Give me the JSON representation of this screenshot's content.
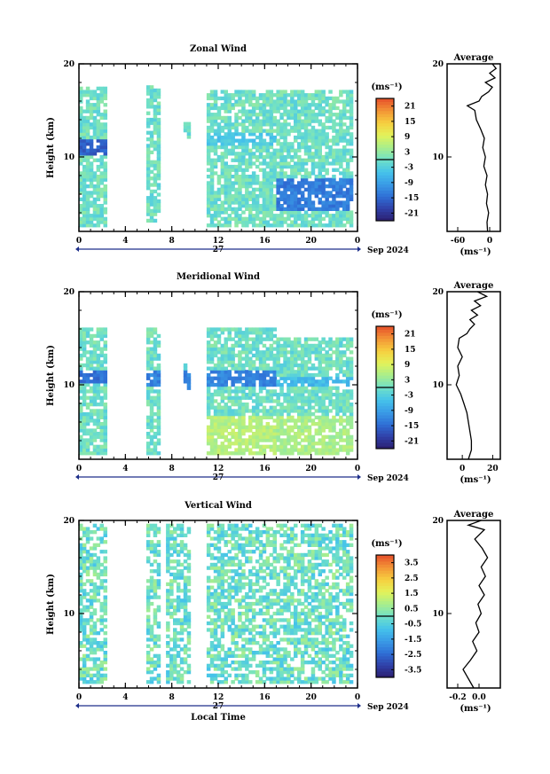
{
  "chart_data": [
    {
      "type": "heatmap",
      "id": "zonal",
      "title": "Zonal Wind",
      "ylabel": "Height (km)",
      "xlabel": "",
      "x_ticks": [
        "0",
        "4",
        "8",
        "12",
        "16",
        "20",
        "0"
      ],
      "y_ticks": [
        "20",
        "10"
      ],
      "ylim": [
        2,
        20
      ],
      "xlim": [
        0,
        24
      ],
      "date_center": "27",
      "date_label": "Sep 2024",
      "colorbar": {
        "unit": "(ms⁻¹)",
        "ticks": [
          "21",
          "15",
          "9",
          "3",
          "-3",
          "-9",
          "-15",
          "-21"
        ],
        "range": [
          -24,
          24
        ]
      },
      "coverage": [
        [
          0.0,
          2.3,
          2.5,
          17.5
        ],
        [
          5.8,
          6.8,
          3.0,
          17.5
        ],
        [
          9.0,
          9.6,
          12.0,
          13.5
        ],
        [
          11.0,
          17.0,
          2.5,
          17.0
        ],
        [
          17.0,
          23.5,
          2.5,
          17.0
        ]
      ],
      "jet": [
        [
          0.0,
          2.3,
          10.0,
          11.6,
          -16
        ],
        [
          11.0,
          17.0,
          11.0,
          12.5,
          -4
        ],
        [
          17.0,
          23.5,
          12.0,
          13.5,
          0
        ],
        [
          17.0,
          23.5,
          4.0,
          7.5,
          -13
        ]
      ],
      "average": {
        "title": "Average",
        "x_ticks": [
          "-60",
          "0"
        ],
        "xlim": [
          -80,
          20
        ],
        "xlabel": "(ms⁻¹)",
        "y_ticks": [
          "20",
          "10"
        ],
        "profile": [
          [
            2.0,
            -4
          ],
          [
            3.0,
            -5
          ],
          [
            4.0,
            -2
          ],
          [
            5.0,
            -6
          ],
          [
            6.0,
            -4
          ],
          [
            7.0,
            -8
          ],
          [
            8.0,
            -5
          ],
          [
            9.0,
            -11
          ],
          [
            10.0,
            -8
          ],
          [
            11.0,
            -13
          ],
          [
            12.0,
            -10
          ],
          [
            13.0,
            -17
          ],
          [
            14.0,
            -25
          ],
          [
            15.0,
            -28
          ],
          [
            15.5,
            -42
          ],
          [
            16.0,
            -20
          ],
          [
            16.5,
            -15
          ],
          [
            17.0,
            -2
          ],
          [
            17.5,
            5
          ],
          [
            18.0,
            -8
          ],
          [
            18.5,
            10
          ],
          [
            19.0,
            0
          ],
          [
            19.5,
            12
          ],
          [
            20.0,
            5
          ]
        ]
      }
    },
    {
      "type": "heatmap",
      "id": "meridional",
      "title": "Meridional Wind",
      "ylabel": "Height (km)",
      "xlabel": "",
      "x_ticks": [
        "0",
        "4",
        "8",
        "12",
        "16",
        "20",
        "0"
      ],
      "y_ticks": [
        "20",
        "10"
      ],
      "ylim": [
        2,
        20
      ],
      "xlim": [
        0,
        24
      ],
      "date_center": "27",
      "date_label": "Sep 2024",
      "colorbar": {
        "unit": "(ms⁻¹)",
        "ticks": [
          "21",
          "15",
          "9",
          "3",
          "-3",
          "-9",
          "-15",
          "-21"
        ],
        "range": [
          -24,
          24
        ]
      },
      "coverage": [
        [
          0.0,
          2.3,
          2.5,
          16.0
        ],
        [
          5.8,
          6.8,
          2.5,
          16.0
        ],
        [
          9.0,
          9.6,
          9.5,
          12.0
        ],
        [
          11.0,
          17.0,
          2.5,
          16.0
        ],
        [
          17.0,
          23.5,
          2.5,
          15.0
        ]
      ],
      "jet": [
        [
          0.0,
          2.3,
          10.0,
          11.5,
          -14
        ],
        [
          5.8,
          6.8,
          9.5,
          11.5,
          -12
        ],
        [
          9.0,
          9.6,
          9.5,
          11.5,
          -12
        ],
        [
          11.0,
          17.0,
          9.5,
          11.5,
          -12
        ],
        [
          17.0,
          23.5,
          9.5,
          10.8,
          -6
        ],
        [
          11.0,
          17.0,
          2.5,
          6.5,
          6
        ],
        [
          17.0,
          23.5,
          2.5,
          6.5,
          5
        ]
      ],
      "average": {
        "title": "Average",
        "x_ticks": [
          "0",
          "20"
        ],
        "xlim": [
          -10,
          25
        ],
        "xlabel": "(ms⁻¹)",
        "y_ticks": [
          "20",
          "10"
        ],
        "profile": [
          [
            2.0,
            4
          ],
          [
            3.0,
            6
          ],
          [
            4.0,
            6
          ],
          [
            5.0,
            5
          ],
          [
            6.0,
            4
          ],
          [
            7.0,
            3
          ],
          [
            8.0,
            1
          ],
          [
            9.0,
            -1
          ],
          [
            10.0,
            -4
          ],
          [
            11.0,
            -2
          ],
          [
            12.0,
            -3
          ],
          [
            13.0,
            0
          ],
          [
            14.0,
            -3
          ],
          [
            15.0,
            -2
          ],
          [
            15.5,
            3
          ],
          [
            16.0,
            5
          ],
          [
            16.5,
            8
          ],
          [
            17.0,
            5
          ],
          [
            17.5,
            10
          ],
          [
            18.0,
            6
          ],
          [
            18.5,
            12
          ],
          [
            19.0,
            8
          ],
          [
            19.5,
            16
          ],
          [
            20.0,
            10
          ]
        ]
      }
    },
    {
      "type": "heatmap",
      "id": "vertical",
      "title": "Vertical Wind",
      "ylabel": "Height (km)",
      "xlabel": "Local Time",
      "x_ticks": [
        "0",
        "4",
        "8",
        "12",
        "16",
        "20",
        "0"
      ],
      "y_ticks": [
        "20",
        "10"
      ],
      "ylim": [
        2,
        20
      ],
      "xlim": [
        0,
        24
      ],
      "date_center": "27",
      "date_label": "Sep 2024",
      "colorbar": {
        "unit": "(ms⁻¹)",
        "ticks": [
          "3.5",
          "2.5",
          "1.5",
          "0.5",
          "-0.5",
          "-1.5",
          "-2.5",
          "-3.5"
        ],
        "range": [
          -4,
          4
        ]
      },
      "coverage": [
        [
          0.0,
          2.3,
          2.5,
          19.5
        ],
        [
          5.8,
          6.8,
          2.5,
          19.5
        ],
        [
          7.5,
          9.5,
          2.5,
          19.5
        ],
        [
          11.0,
          17.0,
          2.5,
          19.5
        ],
        [
          17.0,
          23.5,
          2.5,
          19.5
        ]
      ],
      "jet": [],
      "average": {
        "title": "Average",
        "x_ticks": [
          "-0.2",
          "0.0"
        ],
        "xlim": [
          -0.3,
          0.2
        ],
        "xlabel": "(ms⁻¹)",
        "y_ticks": [
          "20",
          "10"
        ],
        "profile": [
          [
            2.0,
            -0.05
          ],
          [
            3.0,
            -0.1
          ],
          [
            4.0,
            -0.15
          ],
          [
            5.0,
            -0.08
          ],
          [
            6.0,
            -0.02
          ],
          [
            7.0,
            -0.06
          ],
          [
            8.0,
            0.0
          ],
          [
            9.0,
            -0.03
          ],
          [
            10.0,
            0.02
          ],
          [
            11.0,
            -0.01
          ],
          [
            12.0,
            0.05
          ],
          [
            13.0,
            0.0
          ],
          [
            14.0,
            0.06
          ],
          [
            15.0,
            0.02
          ],
          [
            16.0,
            0.08
          ],
          [
            17.0,
            0.03
          ],
          [
            18.0,
            -0.04
          ],
          [
            19.0,
            0.05
          ],
          [
            19.5,
            -0.1
          ],
          [
            20.0,
            0.02
          ]
        ]
      }
    }
  ]
}
